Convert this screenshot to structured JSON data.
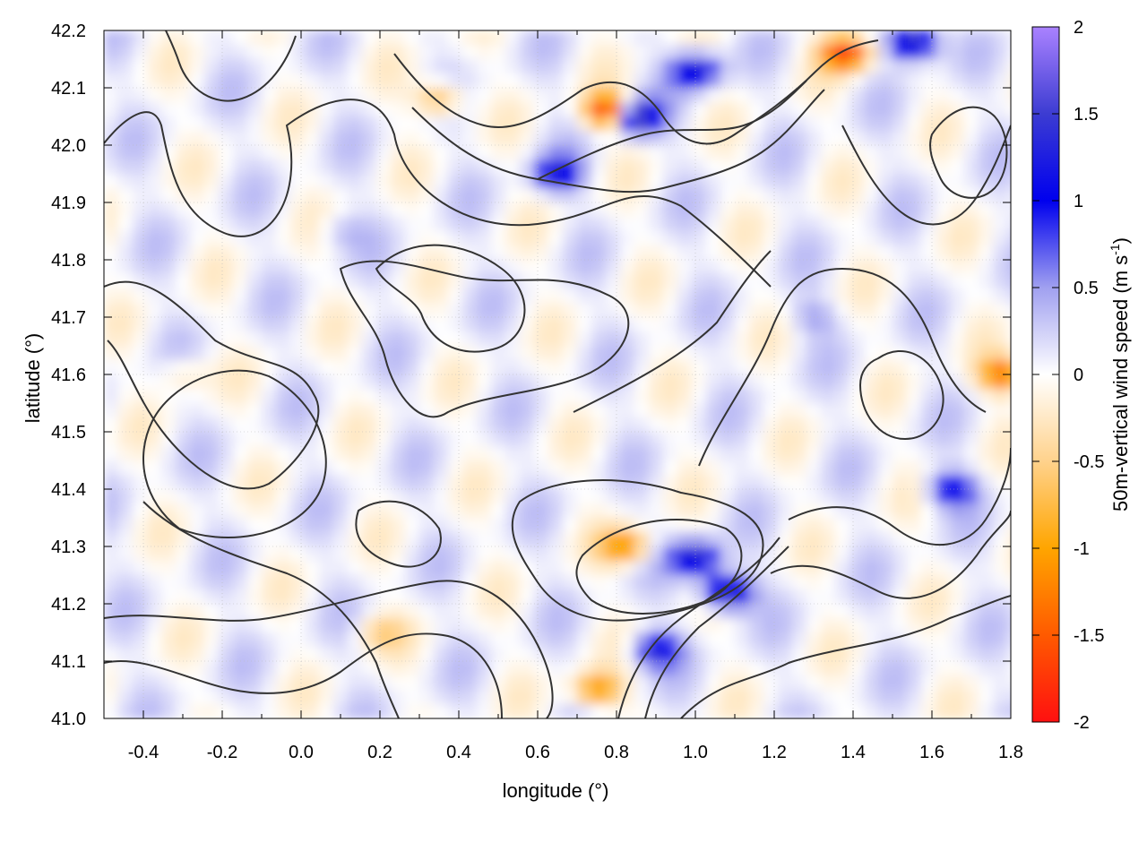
{
  "chart_data": {
    "type": "heatmap",
    "title": "",
    "xlabel": "longitude (°)",
    "ylabel": "latitude (°)",
    "colorbar_label": "50m-vertical wind speed (m s-1)",
    "colorbar_label_parts": {
      "main": "50m-vertical wind speed (m s",
      "sup": "-1",
      "close": ")"
    },
    "xlim": [
      -0.5,
      1.8
    ],
    "ylim": [
      41.0,
      42.2
    ],
    "clim": [
      -2,
      2
    ],
    "x_ticks": [
      -0.4,
      -0.2,
      0.0,
      0.2,
      0.4,
      0.6,
      0.8,
      1.0,
      1.2,
      1.4,
      1.6,
      1.8
    ],
    "x_tick_labels": [
      "-0.4",
      "-0.2",
      "0.0",
      "0.2",
      "0.4",
      "0.6",
      "0.8",
      "1.0",
      "1.2",
      "1.4",
      "1.6",
      "1.8"
    ],
    "y_ticks": [
      41.0,
      41.1,
      41.2,
      41.3,
      41.4,
      41.5,
      41.6,
      41.7,
      41.8,
      41.9,
      42.0,
      42.1,
      42.2
    ],
    "y_tick_labels": [
      "41.0",
      "41.1",
      "41.2",
      "41.3",
      "41.4",
      "41.5",
      "41.6",
      "41.7",
      "41.8",
      "41.9",
      "42.0",
      "42.1",
      "42.2"
    ],
    "colorbar_ticks": [
      -2,
      -1.5,
      -1,
      -0.5,
      0,
      0.5,
      1,
      1.5,
      2
    ],
    "colorbar_tick_labels": [
      "-2",
      "-1.5",
      "-1",
      "-0.5",
      "0",
      "0.5",
      "1",
      "1.5",
      "2"
    ],
    "colormap": [
      {
        "v": -2.0,
        "color": "#ff1010"
      },
      {
        "v": -1.5,
        "color": "#ff5a00"
      },
      {
        "v": -1.0,
        "color": "#ffa500"
      },
      {
        "v": -0.5,
        "color": "#ffd28c"
      },
      {
        "v": 0.0,
        "color": "#ffffff"
      },
      {
        "v": 0.5,
        "color": "#a0a0f0"
      },
      {
        "v": 1.0,
        "color": "#0000ee"
      },
      {
        "v": 1.5,
        "color": "#3c3cd2"
      },
      {
        "v": 2.0,
        "color": "#aa82ff"
      }
    ],
    "grid": true,
    "contour_color": "#333333",
    "hotspots": [
      {
        "lon": 0.85,
        "lat": 42.05,
        "value": 1.9
      },
      {
        "lon": 0.78,
        "lat": 42.06,
        "value": -1.9
      },
      {
        "lon": 1.0,
        "lat": 42.13,
        "value": 1.4
      },
      {
        "lon": 1.38,
        "lat": 42.16,
        "value": -1.8
      },
      {
        "lon": 1.55,
        "lat": 42.18,
        "value": 1.8
      },
      {
        "lon": 0.65,
        "lat": 41.95,
        "value": 1.2
      },
      {
        "lon": 0.35,
        "lat": 42.08,
        "value": -0.9
      },
      {
        "lon": 1.0,
        "lat": 41.28,
        "value": 1.5
      },
      {
        "lon": 1.08,
        "lat": 41.22,
        "value": 1.8
      },
      {
        "lon": 0.82,
        "lat": 41.3,
        "value": -1.2
      },
      {
        "lon": 0.9,
        "lat": 41.12,
        "value": 1.2
      },
      {
        "lon": 1.65,
        "lat": 41.4,
        "value": 1.1
      },
      {
        "lon": 1.78,
        "lat": 41.6,
        "value": -1.4
      },
      {
        "lon": 0.75,
        "lat": 41.05,
        "value": -1.2
      },
      {
        "lon": 0.2,
        "lat": 41.15,
        "value": -0.5
      },
      {
        "lon": -0.3,
        "lat": 41.6,
        "value": -0.4
      },
      {
        "lon": 1.3,
        "lat": 41.7,
        "value": 0.4
      },
      {
        "lon": 0.1,
        "lat": 41.85,
        "value": 0.3
      }
    ]
  }
}
